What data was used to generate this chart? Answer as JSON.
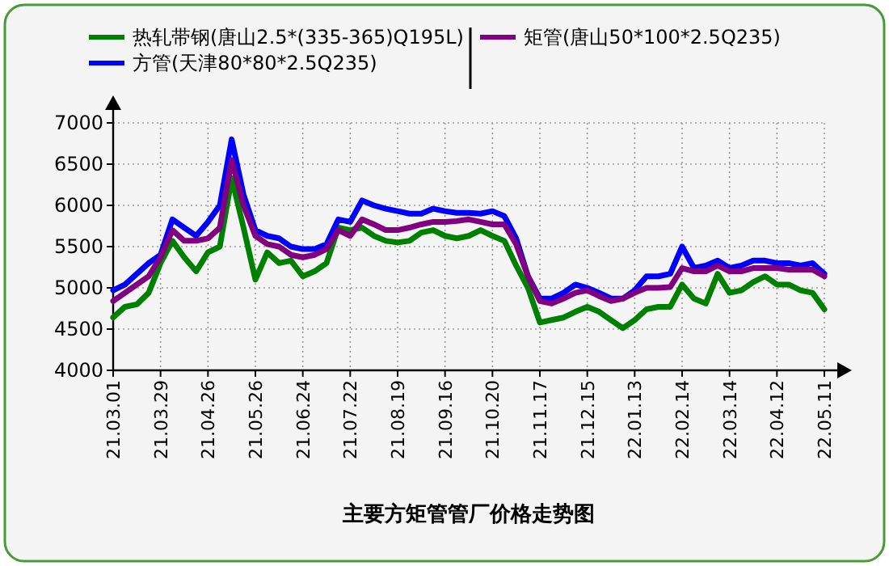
{
  "chart_data": {
    "type": "line",
    "title": "主要方矩管管厂价格走势图",
    "categories": [
      "21.03.01",
      null,
      null,
      null,
      "21.03.29",
      null,
      null,
      null,
      "21.04.26",
      null,
      null,
      null,
      "21.05.26",
      null,
      null,
      null,
      "21.06.24",
      null,
      null,
      null,
      "21.07.22",
      null,
      null,
      null,
      "21.08.19",
      null,
      null,
      null,
      "21.09.16",
      null,
      null,
      null,
      "21.10.20",
      null,
      null,
      null,
      "21.11.17",
      null,
      null,
      null,
      "21.12.15",
      null,
      null,
      null,
      "22.01.13",
      null,
      null,
      null,
      "22.02.14",
      null,
      null,
      null,
      "22.03.14",
      null,
      null,
      null,
      "22.04.12",
      null,
      null,
      null,
      "22.05.11"
    ],
    "series": [
      {
        "name": "热轧带钢(唐山2.5*(335-365)Q195L)",
        "color": "#008000",
        "values": [
          4640,
          4770,
          4800,
          4940,
          5300,
          5570,
          5370,
          5200,
          5430,
          5500,
          6330,
          5730,
          5100,
          5430,
          5300,
          5330,
          5140,
          5200,
          5300,
          5730,
          5700,
          5730,
          5630,
          5570,
          5550,
          5570,
          5670,
          5700,
          5630,
          5600,
          5630,
          5700,
          5630,
          5570,
          5270,
          5000,
          4580,
          4610,
          4640,
          4710,
          4770,
          4710,
          4610,
          4510,
          4610,
          4740,
          4770,
          4770,
          5040,
          4870,
          4810,
          5170,
          4940,
          4970,
          5070,
          5140,
          5040,
          5040,
          4970,
          4940,
          4740
        ]
      },
      {
        "name": "方管(天津80*80*2.5Q235)",
        "color": "#0000ff",
        "values": [
          4970,
          5040,
          5170,
          5300,
          5400,
          5830,
          5730,
          5630,
          5800,
          6000,
          6800,
          6130,
          5700,
          5630,
          5600,
          5500,
          5470,
          5470,
          5530,
          5830,
          5800,
          6060,
          6000,
          5960,
          5930,
          5900,
          5900,
          5960,
          5930,
          5910,
          5910,
          5900,
          5930,
          5870,
          5600,
          5140,
          4870,
          4870,
          4940,
          5040,
          5000,
          4940,
          4870,
          4870,
          4970,
          5140,
          5140,
          5170,
          5500,
          5240,
          5270,
          5330,
          5240,
          5270,
          5330,
          5330,
          5300,
          5300,
          5270,
          5300,
          5170
        ]
      },
      {
        "name": "矩管(唐山50*100*2.5Q235)",
        "color": "#800080",
        "values": [
          4840,
          4940,
          5040,
          5140,
          5370,
          5700,
          5570,
          5570,
          5600,
          5730,
          6550,
          6000,
          5630,
          5530,
          5500,
          5400,
          5370,
          5400,
          5470,
          5700,
          5630,
          5830,
          5770,
          5700,
          5700,
          5730,
          5770,
          5800,
          5800,
          5810,
          5830,
          5800,
          5770,
          5770,
          5530,
          5140,
          4840,
          4810,
          4870,
          4940,
          4970,
          4900,
          4840,
          4870,
          4940,
          5000,
          5000,
          5010,
          5240,
          5200,
          5200,
          5270,
          5200,
          5200,
          5240,
          5240,
          5240,
          5220,
          5220,
          5220,
          5140
        ]
      }
    ],
    "ylim": [
      4000,
      7000
    ],
    "yticks": [
      4000,
      4500,
      5000,
      5500,
      6000,
      6500,
      7000
    ],
    "grid": true,
    "legend": "top",
    "marker": "none",
    "line_style": "solid"
  }
}
